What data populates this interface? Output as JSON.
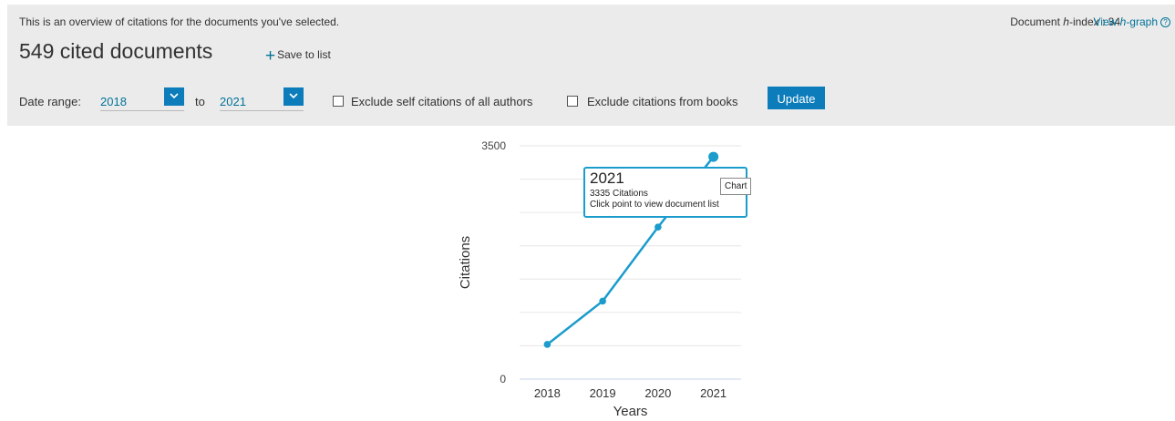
{
  "header": {
    "intro_text": "This is an overview of citations for the documents you've selected.",
    "hindex_prefix": "Document ",
    "hindex_italic": "h",
    "hindex_suffix": "-index : 34",
    "hgraph_prefix": "View ",
    "hgraph_italic": "h",
    "hgraph_suffix": "-graph",
    "help_glyph": "?",
    "title": "549 cited documents",
    "save_plus": "+",
    "save_label": "Save to list"
  },
  "filters": {
    "date_range_label": "Date range:",
    "from_value": "2018",
    "to_label": "to",
    "to_value": "2021",
    "exclude_self_label": "Exclude self citations of all authors",
    "exclude_books_label": "Exclude citations from books",
    "update_label": "Update",
    "exclude_self_checked": false,
    "exclude_books_checked": false
  },
  "tooltip": {
    "year": "2021",
    "citations_text": "3335 Citations",
    "hint": "Click point to view document list",
    "chart_label": "Chart"
  },
  "chart_data": {
    "type": "line",
    "categories": [
      "2018",
      "2019",
      "2020",
      "2021"
    ],
    "series": [
      {
        "values": [
          520,
          1170,
          2280,
          3335
        ]
      }
    ],
    "ylabel": "Citations",
    "xlabel": "Years",
    "ylim": [
      0,
      3500
    ],
    "yticks": [
      "0",
      "3500"
    ],
    "grid": true,
    "line_color": "#1a9ccc",
    "grid_color": "#e6e6e6"
  },
  "colors": {
    "accent": "#0c7cba",
    "link": "#007398",
    "panel_bg": "#ebebeb"
  }
}
